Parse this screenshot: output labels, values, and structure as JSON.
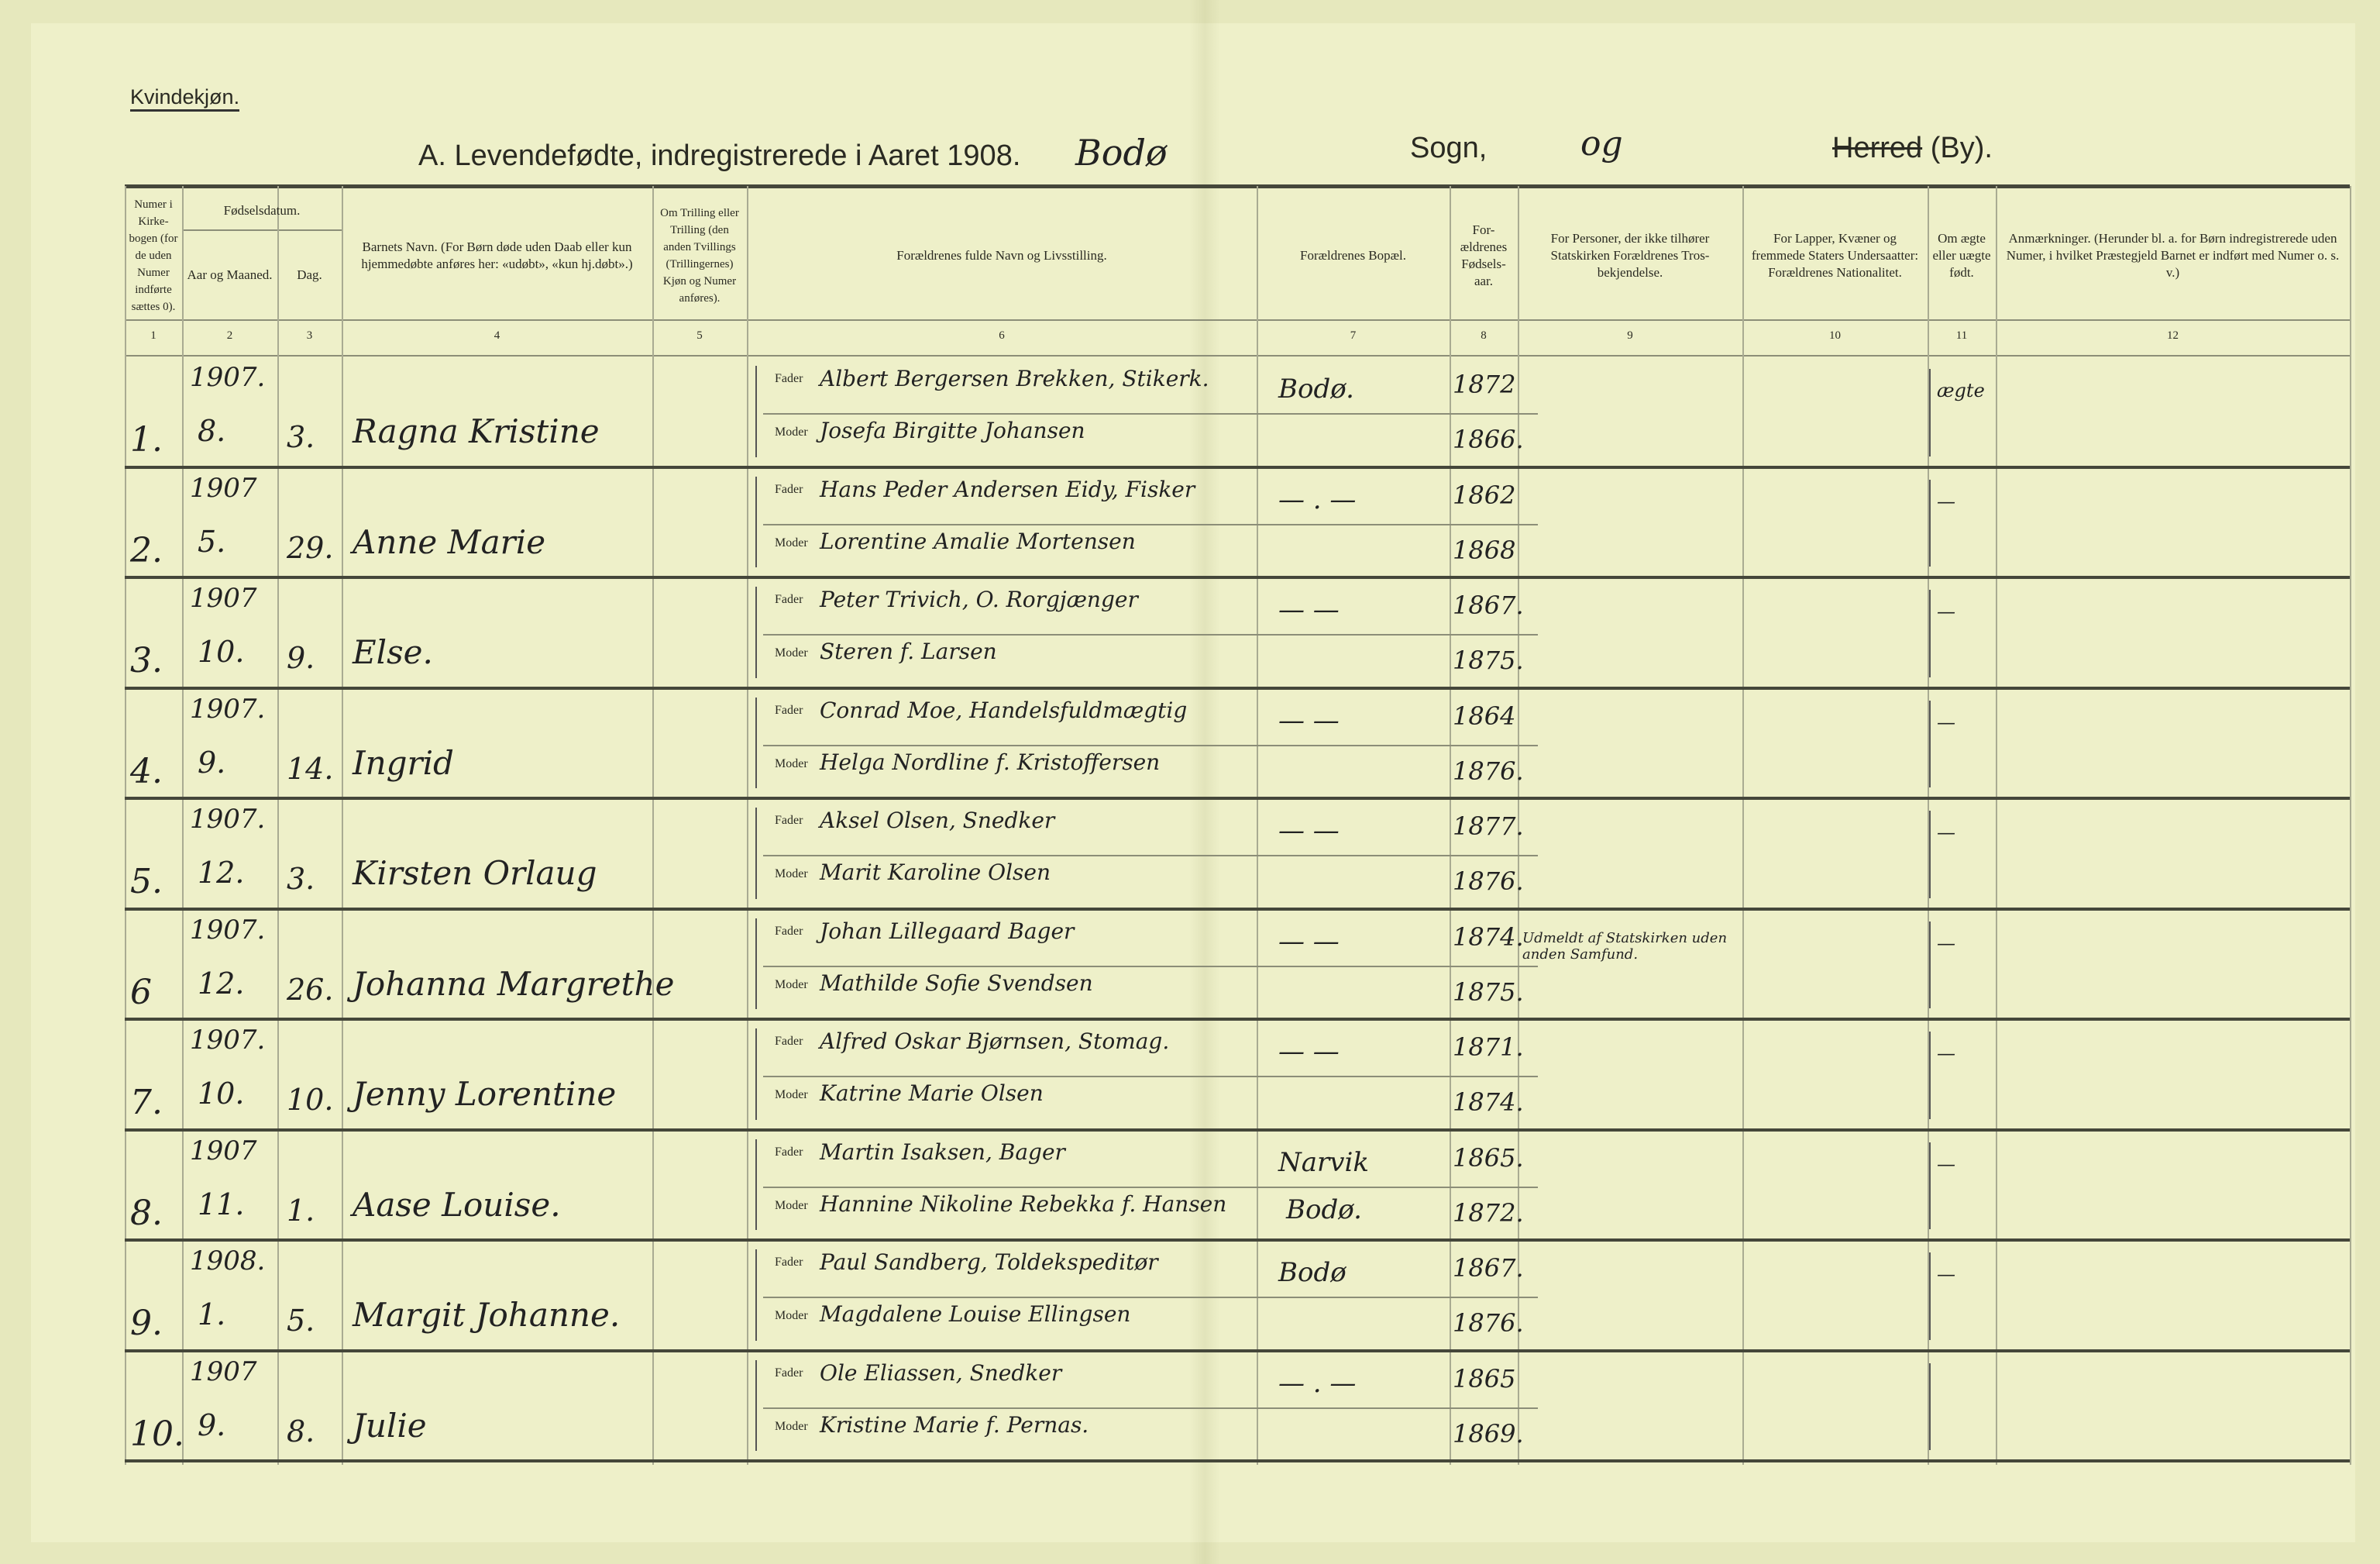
{
  "header": {
    "gender": "Kvindekjøn.",
    "title": "A.  Levendefødte, indregistrerede i Aaret 1908.",
    "place_handwritten": "Bodø",
    "sogn_label": "Sogn,",
    "sogn_handwritten": "og",
    "herred_struck": "Herred",
    "by_label": "(By)."
  },
  "columns": [
    {
      "num": "1",
      "label": "Numer i Kirke-bogen (for de uden Numer indførte sættes 0)."
    },
    {
      "num": "2",
      "label": "Aar og Maaned."
    },
    {
      "num": "3",
      "label": "Dag."
    },
    {
      "num": "4",
      "label": "Barnets Navn. (For Børn døde uden Daab eller kun hjemmedøbte anføres her: «udøbt», «kun hj.døbt».)"
    },
    {
      "num": "5",
      "label": "Om Trilling eller Trilling (den anden Tvillings (Trillingernes) Kjøn og Numer anføres)."
    },
    {
      "num": "6",
      "label": "Forældrenes fulde Navn og Livsstilling."
    },
    {
      "num": "7",
      "label": "Forældrenes Bopæl."
    },
    {
      "num": "8",
      "label": "For-ældrenes Fødsels-aar."
    },
    {
      "num": "9",
      "label": "For Personer, der ikke tilhører Statskirken Forældrenes Tros-bekjendelse."
    },
    {
      "num": "10",
      "label": "For Lapper, Kvæner og fremmede Staters Undersaatter: Forældrenes Nationalitet."
    },
    {
      "num": "11",
      "label": "Om ægte eller uægte født."
    },
    {
      "num": "12",
      "label": "Anmærkninger. (Herunder bl. a. for Børn indregistrerede uden Numer, i hvilket Præstegjeld Barnet er indført med Numer o. s. v.)"
    }
  ],
  "fødselsdatum_label": "Fødselsdatum.",
  "fader_label": "Fader",
  "moder_label": "Moder",
  "rows": [
    {
      "no": "1.",
      "year": "1907.",
      "month": "8.",
      "day": "3.",
      "name": "Ragna Kristine",
      "father": "Albert Bergersen Brekken, Stikerk.",
      "mother": "Josefa Birgitte Johansen",
      "residence_f": "Bodø.",
      "residence_m": "",
      "fyear": "1872",
      "myear": "1866.",
      "faith": "",
      "legit": "ægte"
    },
    {
      "no": "2.",
      "year": "1907",
      "month": "5.",
      "day": "29.",
      "name": "Anne Marie",
      "father": "Hans Peder Andersen Eidy, Fisker",
      "mother": "Lorentine Amalie Mortensen",
      "residence_f": "— . —",
      "residence_m": "",
      "fyear": "1862",
      "myear": "1868",
      "faith": "",
      "legit": "—"
    },
    {
      "no": "3.",
      "year": "1907",
      "month": "10.",
      "day": "9.",
      "name": "Else.",
      "father": "Peter Trivich, O. Rorgjænger",
      "mother": "Steren f. Larsen",
      "residence_f": "— —",
      "residence_m": "",
      "fyear": "1867.",
      "myear": "1875.",
      "faith": "",
      "legit": "—"
    },
    {
      "no": "4.",
      "year": "1907.",
      "month": "9.",
      "day": "14.",
      "name": "Ingrid",
      "father": "Conrad Moe, Handelsfuldmægtig",
      "mother": "Helga Nordline f. Kristoffersen",
      "residence_f": "— —",
      "residence_m": "",
      "fyear": "1864",
      "myear": "1876.",
      "faith": "",
      "legit": "—"
    },
    {
      "no": "5.",
      "year": "1907.",
      "month": "12.",
      "day": "3.",
      "name": "Kirsten Orlaug",
      "father": "Aksel Olsen, Snedker",
      "mother": "Marit Karoline Olsen",
      "residence_f": "— —",
      "residence_m": "",
      "fyear": "1877.",
      "myear": "1876.",
      "faith": "",
      "legit": "—"
    },
    {
      "no": "6",
      "year": "1907.",
      "month": "12.",
      "day": "26.",
      "name": "Johanna Margrethe",
      "father": "Johan Lillegaard Bager",
      "mother": "Mathilde Sofie Svendsen",
      "residence_f": "— —",
      "residence_m": "",
      "fyear": "1874.",
      "myear": "1875.",
      "faith": "Udmeldt af Statskirken uden anden Samfund.",
      "legit": "—"
    },
    {
      "no": "7.",
      "year": "1907.",
      "month": "10.",
      "day": "10.",
      "name": "Jenny Lorentine",
      "father": "Alfred Oskar Bjørnsen, Stomag.",
      "mother": "Katrine Marie Olsen",
      "residence_f": "— —",
      "residence_m": "",
      "fyear": "1871.",
      "myear": "1874.",
      "faith": "",
      "legit": "—"
    },
    {
      "no": "8.",
      "year": "1907",
      "month": "11.",
      "day": "1.",
      "name": "Aase Louise.",
      "father": "Martin Isaksen, Bager",
      "mother": "Hannine Nikoline Rebekka f. Hansen",
      "residence_f": "Narvik",
      "residence_m": "Bodø.",
      "fyear": "1865.",
      "myear": "1872.",
      "faith": "",
      "legit": "—"
    },
    {
      "no": "9.",
      "year": "1908.",
      "month": "1.",
      "day": "5.",
      "name": "Margit Johanne.",
      "father": "Paul Sandberg, Toldekspeditør",
      "mother": "Magdalene Louise Ellingsen",
      "residence_f": "Bodø",
      "residence_m": "",
      "fyear": "1867.",
      "myear": "1876.",
      "faith": "",
      "legit": "—"
    },
    {
      "no": "10.",
      "year": "1907",
      "month": "9.",
      "day": "8.",
      "name": "Julie",
      "father": "Ole Eliassen, Snedker",
      "mother": "Kristine Marie f. Pernas.",
      "residence_f": "— . —",
      "residence_m": "",
      "fyear": "1865",
      "myear": "1869.",
      "faith": "",
      "legit": ""
    }
  ]
}
